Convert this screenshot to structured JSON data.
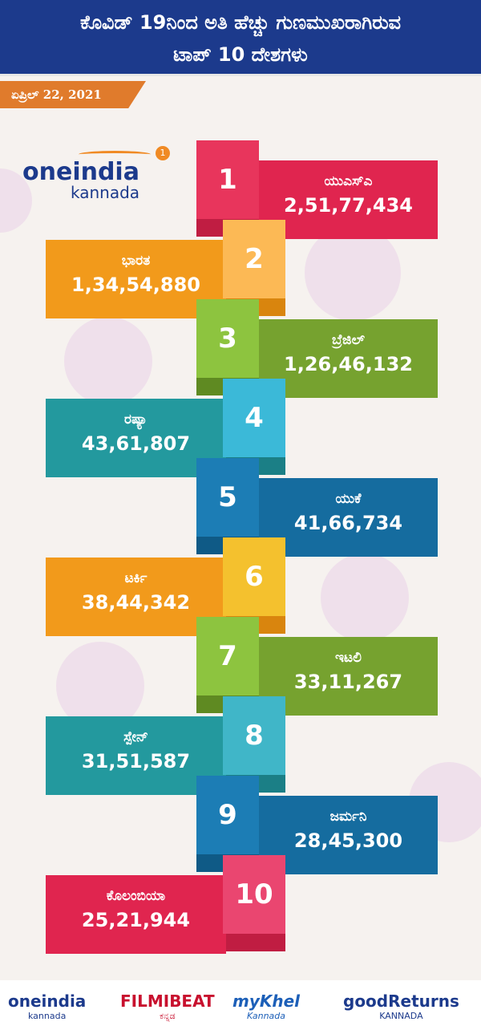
{
  "header": {
    "title_lines": [
      "ಕೊವಿಡ್ 19ನಿಂದ ಅತಿ ಹೆಚ್ಚು ಗುಣಮುಖರಾಗಿರುವ",
      "ಟಾಪ್ 10 ದೇಶಗಳು"
    ],
    "date": "ಏಪ್ರಿಲ್ 22, 2021"
  },
  "logo": {
    "name": "oneindia",
    "sub": "kannada",
    "badge": 1
  },
  "items": [
    {
      "rank": 1,
      "country": "ಯುಎಸ್ಎ",
      "cases": "2,51,77,434"
    },
    {
      "rank": 2,
      "country": "ಭಾರತ",
      "cases": "1,34,54,880"
    },
    {
      "rank": 3,
      "country": "ಬ್ರೆಜಿಲ್",
      "cases": "1,26,46,132"
    },
    {
      "rank": 4,
      "country": "ರಷ್ಯಾ",
      "cases": "43,61,807"
    },
    {
      "rank": 5,
      "country": "ಯುಕೆ",
      "cases": "41,66,734"
    },
    {
      "rank": 6,
      "country": "ಟರ್ಕಿ",
      "cases": "38,44,342"
    },
    {
      "rank": 7,
      "country": "ಇಟಲಿ",
      "cases": "33,11,267"
    },
    {
      "rank": 8,
      "country": "ಸ್ಪೇನ್",
      "cases": "31,51,587"
    },
    {
      "rank": 9,
      "country": "ಜರ್ಮನಿ",
      "cases": "28,45,300"
    },
    {
      "rank": 10,
      "country": "ಕೊಲಂಬಿಯಾ",
      "cases": "25,21,944"
    }
  ],
  "footer": {
    "brands": [
      "oneindia",
      "kannada",
      "FILMIBEAT",
      "ಕನ್ನಡ",
      "myKhel",
      "Kannada",
      "goodReturns",
      "KANNADA"
    ]
  }
}
